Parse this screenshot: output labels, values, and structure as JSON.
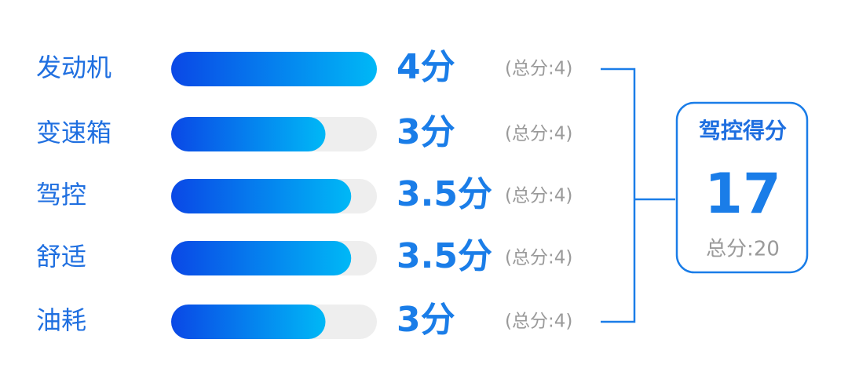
{
  "chart_data": {
    "type": "bar",
    "categories": [
      "发动机",
      "变速箱",
      "驾控",
      "舒适",
      "油耗"
    ],
    "values": [
      4,
      3,
      3.5,
      3.5,
      3
    ],
    "value_labels": [
      "4分",
      "3分",
      "3.5分",
      "3.5分",
      "3分"
    ],
    "max_labels": [
      "(总分:4)",
      "(总分:4)",
      "(总分:4)",
      "(总分:4)",
      "(总分:4)"
    ],
    "xlim": [
      0,
      4
    ],
    "summary": {
      "title": "驾控得分",
      "value": 17,
      "total_label": "总分:20"
    }
  }
}
